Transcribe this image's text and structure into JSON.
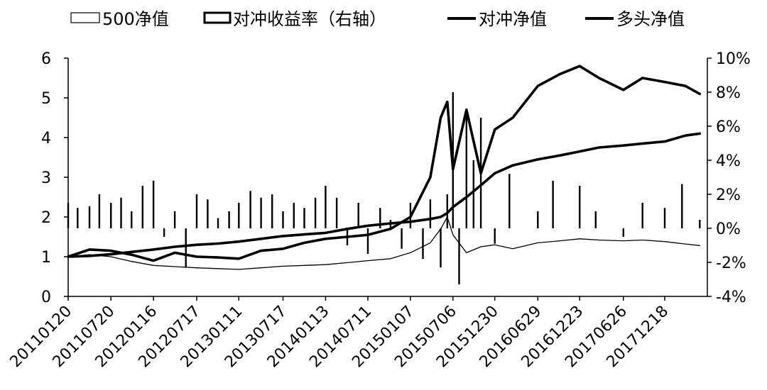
{
  "chart_data": {
    "type": "line",
    "legend": {
      "placement": "top",
      "entries": [
        {
          "label": "500净值",
          "marker": "hollow-bar"
        },
        {
          "label": "对冲收益率（右轴）",
          "marker": "bar"
        },
        {
          "label": "对冲净值",
          "marker": "line"
        },
        {
          "label": "多头净值",
          "marker": "line"
        }
      ]
    },
    "x_ticks": [
      "20110120",
      "20110720",
      "20120116",
      "20120717",
      "20130111",
      "20130717",
      "20140113",
      "20140711",
      "20150107",
      "20150706",
      "20151230",
      "20160629",
      "20161223",
      "20170626",
      "20171218"
    ],
    "left_axis": {
      "ylim": [
        0,
        6
      ],
      "ticks": [
        "0",
        "1",
        "2",
        "3",
        "4",
        "5",
        "6"
      ]
    },
    "right_axis": {
      "ylim": [
        -4,
        10
      ],
      "ticks": [
        "-4%",
        "-2%",
        "0%",
        "2%",
        "4%",
        "6%",
        "8%",
        "10%"
      ]
    },
    "series": [
      {
        "name": "500净值",
        "axis": "left",
        "style": "thin",
        "x": [
          "20110120",
          "20110420",
          "20110720",
          "20111015",
          "20120116",
          "20120415",
          "20120717",
          "20121015",
          "20130111",
          "20130415",
          "20130717",
          "20131015",
          "20140113",
          "20140415",
          "20140711",
          "20141015",
          "20150107",
          "20150401",
          "20150515",
          "20150612",
          "20150706",
          "20150901",
          "20151101",
          "20151230",
          "20160315",
          "20160629",
          "20161001",
          "20161223",
          "20170315",
          "20170626",
          "20170915",
          "20171218",
          "20180315",
          "20180515"
        ],
        "values": [
          1.0,
          1.05,
          1.0,
          0.88,
          0.78,
          0.75,
          0.72,
          0.7,
          0.68,
          0.72,
          0.76,
          0.78,
          0.8,
          0.85,
          0.9,
          0.95,
          1.1,
          1.35,
          1.7,
          2.0,
          1.55,
          1.1,
          1.25,
          1.3,
          1.2,
          1.35,
          1.4,
          1.45,
          1.42,
          1.4,
          1.42,
          1.38,
          1.32,
          1.28
        ]
      },
      {
        "name": "对冲净值",
        "axis": "left",
        "style": "thick",
        "x": [
          "20110120",
          "20110420",
          "20110720",
          "20111015",
          "20120116",
          "20120415",
          "20120717",
          "20121015",
          "20130111",
          "20130415",
          "20130717",
          "20131015",
          "20140113",
          "20140415",
          "20140711",
          "20141015",
          "20150107",
          "20150401",
          "20150515",
          "20150612",
          "20150706",
          "20150901",
          "20151101",
          "20151230",
          "20160315",
          "20160629",
          "20161001",
          "20161223",
          "20170315",
          "20170626",
          "20170915",
          "20171218",
          "20180315",
          "20180515"
        ],
        "values": [
          1.0,
          1.02,
          1.06,
          1.12,
          1.18,
          1.25,
          1.3,
          1.33,
          1.38,
          1.45,
          1.52,
          1.56,
          1.6,
          1.7,
          1.78,
          1.84,
          1.88,
          1.95,
          2.0,
          2.1,
          2.25,
          2.5,
          2.8,
          3.1,
          3.3,
          3.45,
          3.55,
          3.65,
          3.75,
          3.8,
          3.85,
          3.9,
          4.05,
          4.1
        ]
      },
      {
        "name": "多头净值",
        "axis": "left",
        "style": "thick",
        "x": [
          "20110120",
          "20110420",
          "20110720",
          "20111015",
          "20120116",
          "20120415",
          "20120717",
          "20121015",
          "20130111",
          "20130415",
          "20130717",
          "20131015",
          "20140113",
          "20140415",
          "20140711",
          "20141015",
          "20150107",
          "20150401",
          "20150515",
          "20150612",
          "20150706",
          "20150901",
          "20151101",
          "20151230",
          "20160315",
          "20160629",
          "20161001",
          "20161223",
          "20170315",
          "20170626",
          "20170915",
          "20171218",
          "20180315",
          "20180515"
        ],
        "values": [
          1.0,
          1.18,
          1.15,
          1.05,
          0.9,
          1.1,
          1.0,
          0.98,
          0.95,
          1.15,
          1.2,
          1.35,
          1.45,
          1.5,
          1.55,
          1.7,
          2.0,
          3.0,
          4.5,
          4.9,
          3.2,
          4.7,
          3.1,
          4.2,
          4.5,
          5.3,
          5.6,
          5.8,
          5.5,
          5.2,
          5.5,
          5.4,
          5.3,
          5.1
        ]
      }
    ],
    "bars": {
      "name": "对冲收益率（右轴）",
      "axis": "right",
      "x": [
        "20110120",
        "20110301",
        "20110420",
        "20110601",
        "20110720",
        "20110901",
        "20111015",
        "20111201",
        "20120116",
        "20120301",
        "20120415",
        "20120601",
        "20120717",
        "20120901",
        "20121015",
        "20121201",
        "20130111",
        "20130301",
        "20130415",
        "20130601",
        "20130717",
        "20130901",
        "20131015",
        "20131201",
        "20140113",
        "20140301",
        "20140415",
        "20140601",
        "20140711",
        "20140901",
        "20141015",
        "20141201",
        "20150107",
        "20150301",
        "20150401",
        "20150515",
        "20150612",
        "20150706",
        "20150801",
        "20150901",
        "20151001",
        "20151101",
        "20151230",
        "20160301",
        "20160629",
        "20160901",
        "20161223",
        "20170301",
        "20170626",
        "20170915",
        "20171218",
        "20180301",
        "20180515"
      ],
      "values": [
        1.5,
        1.2,
        1.3,
        2.0,
        1.5,
        1.8,
        1.0,
        2.5,
        2.8,
        -0.5,
        1.0,
        -2.3,
        2.0,
        1.7,
        0.6,
        1.0,
        1.5,
        2.2,
        1.8,
        2.0,
        1.0,
        1.5,
        1.2,
        1.8,
        2.5,
        1.8,
        -1.0,
        1.5,
        -1.5,
        1.2,
        0.5,
        -1.2,
        1.5,
        -1.8,
        1.7,
        -2.3,
        2.0,
        8.0,
        -3.3,
        7.0,
        4.0,
        6.5,
        -0.9,
        3.2,
        1.0,
        2.8,
        2.5,
        1.0,
        -0.5,
        1.5,
        1.2,
        2.6,
        0.5
      ]
    }
  }
}
